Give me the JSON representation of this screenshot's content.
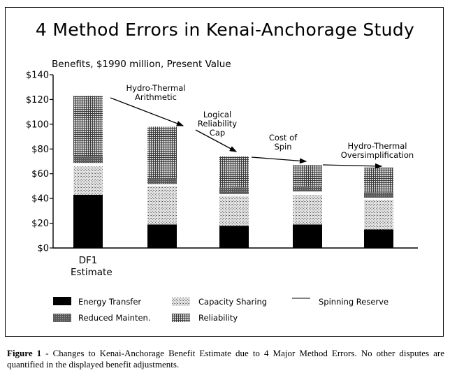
{
  "chart_data": {
    "type": "bar",
    "stacked": true,
    "title": "4 Method Errors in Kenai-Anchorage Study",
    "ylabel": "Benefits, $1990 million, Present Value",
    "ylim": [
      0,
      140
    ],
    "yticks": [
      "$0",
      "$20",
      "$40",
      "$60",
      "$80",
      "$100",
      "$120",
      "$140"
    ],
    "ytick_values": [
      0,
      20,
      40,
      60,
      80,
      100,
      120,
      140
    ],
    "categories": [
      "DF1 Estimate",
      "",
      "",
      "",
      ""
    ],
    "category_label_lines": [
      "DF1",
      "Estimate"
    ],
    "series": [
      {
        "name": "Energy Transfer",
        "values": [
          43,
          19,
          18,
          19,
          15
        ],
        "color": "#000000",
        "pattern": "solid"
      },
      {
        "name": "Capacity Sharing",
        "values": [
          23,
          31,
          24,
          24,
          24
        ],
        "color": "#b5b5b5",
        "pattern": "stipple"
      },
      {
        "name": "Spinning Reserve",
        "values": [
          3,
          2,
          2,
          3,
          2
        ],
        "color": "#ffffff",
        "pattern": "blank"
      },
      {
        "name": "Reduced Mainten.",
        "values": [
          5,
          4,
          5,
          4,
          4
        ],
        "color": "#6a6a6a",
        "pattern": "dark-texture"
      },
      {
        "name": "Reliability",
        "values": [
          49,
          42,
          25,
          17,
          20
        ],
        "color": "#8e8e8e",
        "pattern": "grid"
      }
    ],
    "annotations": [
      {
        "text": [
          "Hydro-Thermal",
          "Arithmetic"
        ]
      },
      {
        "text": [
          "Logical",
          "Reliability",
          "Cap"
        ]
      },
      {
        "text": [
          "Cost of",
          "Spin"
        ]
      },
      {
        "text": [
          "Hydro-Thermal",
          "Oversimplification"
        ]
      }
    ],
    "legend_position": "bottom",
    "grid": false
  },
  "caption": {
    "label": "Figure 1",
    "text": " - Changes to Kenai-Anchorage Benefit Estimate due to 4 Major Method Errors.  No other disputes are quantified in the displayed benefit adjustments."
  }
}
